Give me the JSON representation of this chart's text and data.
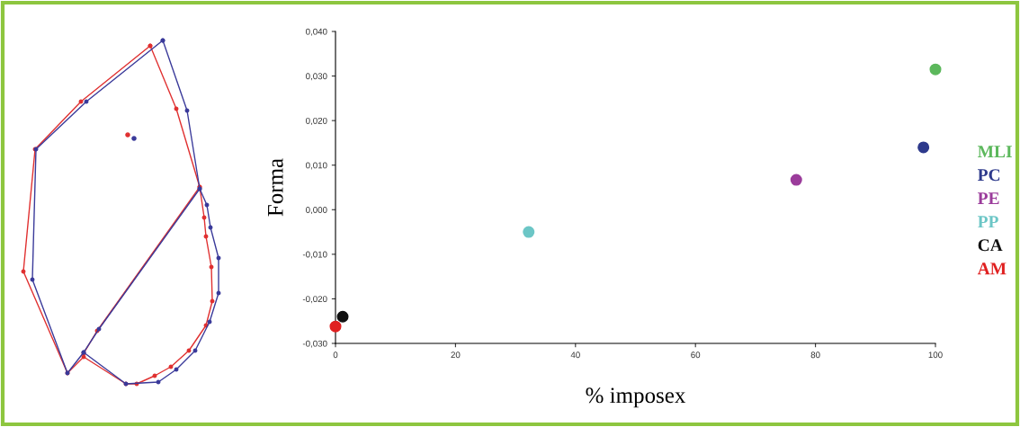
{
  "chart_data": {
    "type": "scatter",
    "xlabel": "% imposex",
    "ylabel": "Forma",
    "xlim": [
      0,
      100
    ],
    "ylim": [
      -0.03,
      0.04
    ],
    "xticks": [
      0,
      20,
      40,
      60,
      80,
      100
    ],
    "yticks": [
      {
        "value": -0.03,
        "label": "-0,030"
      },
      {
        "value": -0.02,
        "label": "-0,020"
      },
      {
        "value": -0.01,
        "label": "-0,010"
      },
      {
        "value": 0,
        "label": "0,000"
      },
      {
        "value": 0.01,
        "label": "0,010"
      },
      {
        "value": 0.02,
        "label": "0,020"
      },
      {
        "value": 0.03,
        "label": "0,030"
      },
      {
        "value": 0.04,
        "label": "0,040"
      }
    ],
    "marker": "circle",
    "legend": "right",
    "grid": false,
    "series": [
      {
        "name": "MLI",
        "color": "#5cb85c",
        "x": [
          100
        ],
        "values": [
          0.0315
        ]
      },
      {
        "name": "PC",
        "color": "#2e3a8c",
        "x": [
          98
        ],
        "values": [
          0.014
        ]
      },
      {
        "name": "PE",
        "color": "#9b3c9b",
        "x": [
          76.8
        ],
        "values": [
          0.0067
        ]
      },
      {
        "name": "PP",
        "color": "#6cc6c6",
        "x": [
          32.2
        ],
        "values": [
          -0.005
        ]
      },
      {
        "name": "CA",
        "color": "#111111",
        "x": [
          1.2
        ],
        "values": [
          -0.024
        ]
      },
      {
        "name": "AM",
        "color": "#e02020",
        "x": [
          0
        ],
        "values": [
          -0.0262
        ]
      }
    ]
  }
}
